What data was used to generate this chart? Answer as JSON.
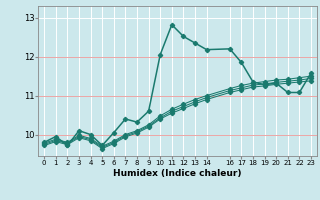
{
  "xlabel": "Humidex (Indice chaleur)",
  "bg_color": "#cce8ec",
  "grid_color_major": "#ffffff",
  "grid_color_red": "#e89898",
  "line_color": "#1a7a6e",
  "xlim": [
    -0.5,
    23.5
  ],
  "ylim": [
    9.45,
    13.3
  ],
  "yticks": [
    10,
    11,
    12,
    13
  ],
  "ytick_labels": [
    "10",
    "11",
    "12",
    "13"
  ],
  "xticks": [
    0,
    1,
    2,
    3,
    4,
    5,
    6,
    7,
    8,
    9,
    10,
    11,
    12,
    13,
    14,
    16,
    17,
    18,
    19,
    20,
    21,
    22,
    23
  ],
  "xtick_labels": [
    "0",
    "1",
    "2",
    "3",
    "4",
    "5",
    "6",
    "7",
    "8",
    "9",
    "10",
    "11",
    "12",
    "13",
    "14",
    "16",
    "17",
    "18",
    "19",
    "20",
    "21",
    "22",
    "23"
  ],
  "series": [
    {
      "x": [
        0,
        1,
        2,
        3,
        4,
        5,
        6,
        7,
        8,
        9,
        10,
        11,
        12,
        13,
        14,
        16,
        17,
        18,
        19,
        20,
        21,
        22,
        23
      ],
      "y": [
        9.8,
        9.95,
        9.72,
        10.1,
        10.0,
        9.72,
        10.05,
        10.4,
        10.32,
        10.6,
        12.05,
        12.82,
        12.52,
        12.35,
        12.18,
        12.2,
        11.85,
        11.35,
        11.28,
        11.32,
        11.08,
        11.08,
        11.58
      ]
    },
    {
      "x": [
        0,
        1,
        2,
        3,
        4,
        5,
        6,
        7,
        8,
        9,
        10,
        11,
        12,
        13,
        14,
        16,
        17,
        18,
        19,
        20,
        21,
        22,
        23
      ],
      "y": [
        9.78,
        9.88,
        9.8,
        9.98,
        9.9,
        9.7,
        9.83,
        10.0,
        10.1,
        10.25,
        10.48,
        10.65,
        10.78,
        10.9,
        11.0,
        11.18,
        11.26,
        11.32,
        11.36,
        11.4,
        11.42,
        11.46,
        11.5
      ]
    },
    {
      "x": [
        0,
        1,
        2,
        3,
        4,
        5,
        6,
        7,
        8,
        9,
        10,
        11,
        12,
        13,
        14,
        16,
        17,
        18,
        19,
        20,
        21,
        22,
        23
      ],
      "y": [
        9.75,
        9.85,
        9.77,
        9.95,
        9.87,
        9.67,
        9.8,
        9.97,
        10.07,
        10.22,
        10.43,
        10.6,
        10.72,
        10.84,
        10.95,
        11.13,
        11.2,
        11.27,
        11.3,
        11.34,
        11.37,
        11.4,
        11.44
      ]
    },
    {
      "x": [
        0,
        1,
        2,
        3,
        4,
        5,
        6,
        7,
        8,
        9,
        10,
        11,
        12,
        13,
        14,
        16,
        17,
        18,
        19,
        20,
        21,
        22,
        23
      ],
      "y": [
        9.72,
        9.82,
        9.74,
        9.92,
        9.84,
        9.64,
        9.77,
        9.94,
        10.04,
        10.19,
        10.4,
        10.55,
        10.67,
        10.79,
        10.9,
        11.08,
        11.15,
        11.22,
        11.25,
        11.29,
        11.32,
        11.35,
        11.38
      ]
    }
  ]
}
